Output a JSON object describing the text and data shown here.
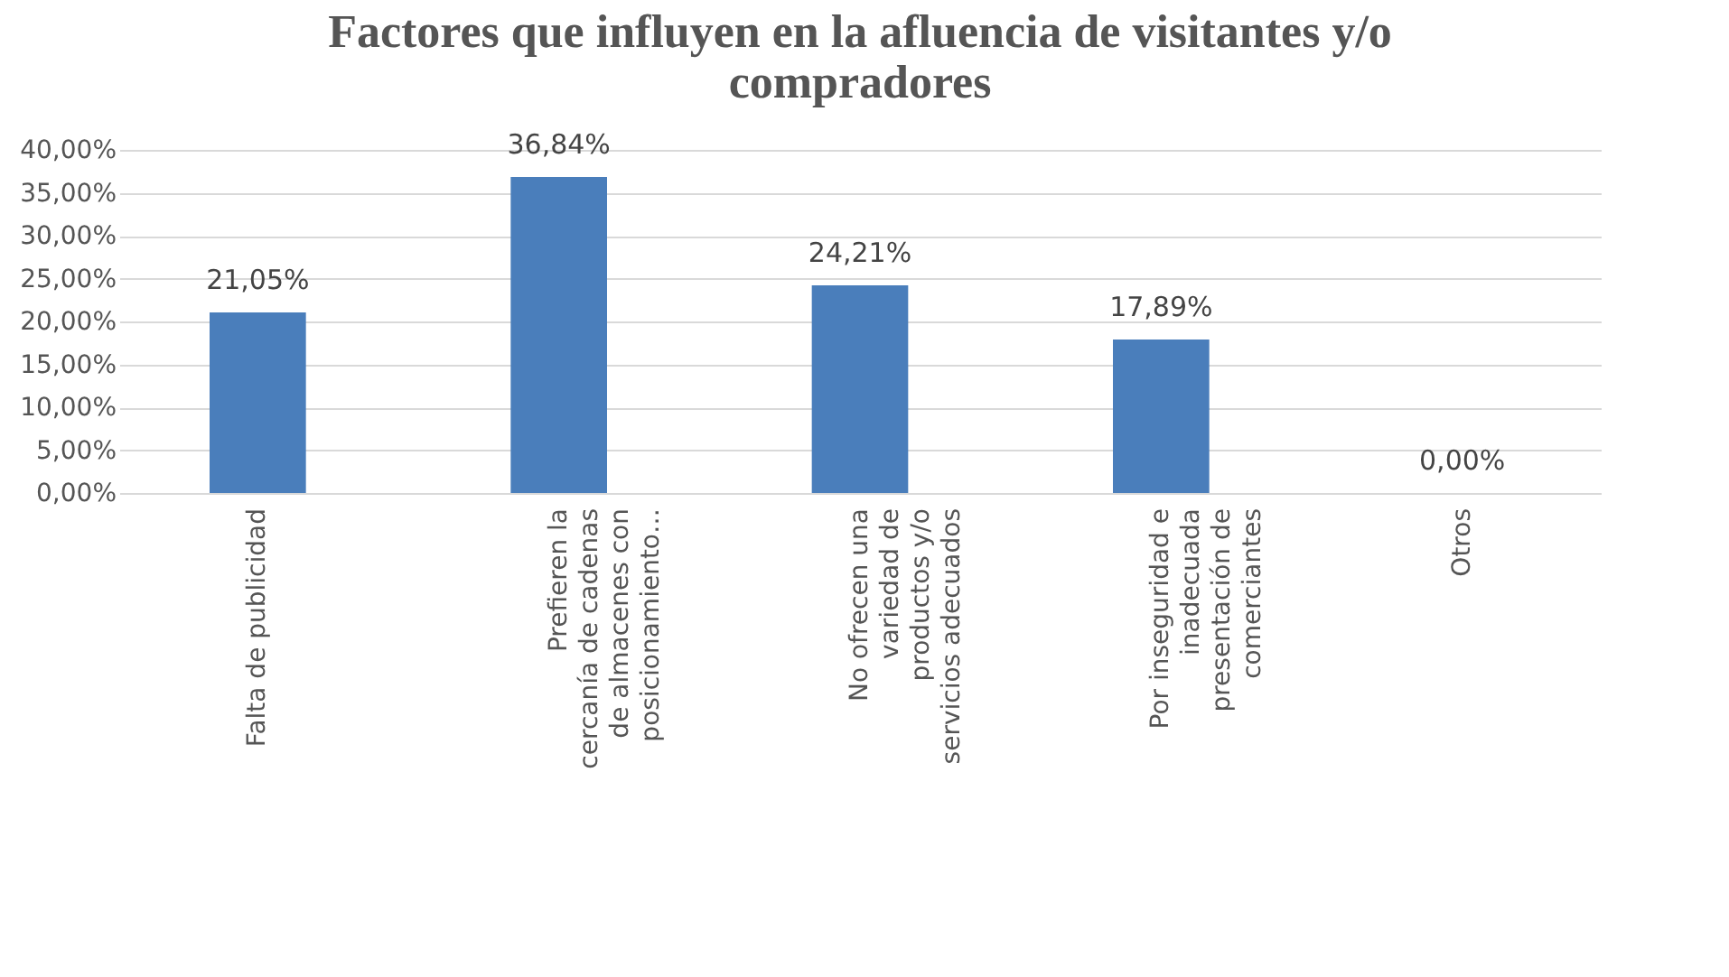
{
  "chart_data": {
    "type": "bar",
    "title": "Factores que influyen en la afluencia de visitantes y/o compradores",
    "categories": [
      "Falta de publicidad",
      "Prefieren la cercanía de cadenas de almacenes con posicionamiento…",
      "No ofrecen una variedad de productos y/o servicios adecuados",
      "Por inseguridad e inadecuada presentación de comerciantes",
      "Otros"
    ],
    "values": [
      21.05,
      36.84,
      24.21,
      17.89,
      0
    ],
    "value_labels": [
      "21,05%",
      "36,84%",
      "24,21%",
      "17,89%",
      "0,00%"
    ],
    "color": "#4a7ebb",
    "ylim": [
      0,
      40
    ],
    "yticks": [
      {
        "value": 0,
        "label": "0,00%"
      },
      {
        "value": 5,
        "label": "5,00%"
      },
      {
        "value": 10,
        "label": "10,00%"
      },
      {
        "value": 15,
        "label": "15,00%"
      },
      {
        "value": 20,
        "label": "20,00%"
      },
      {
        "value": 25,
        "label": "25,00%"
      },
      {
        "value": 30,
        "label": "30,00%"
      },
      {
        "value": 35,
        "label": "35,00%"
      },
      {
        "value": 40,
        "label": "40,00%"
      }
    ],
    "grid": true
  }
}
